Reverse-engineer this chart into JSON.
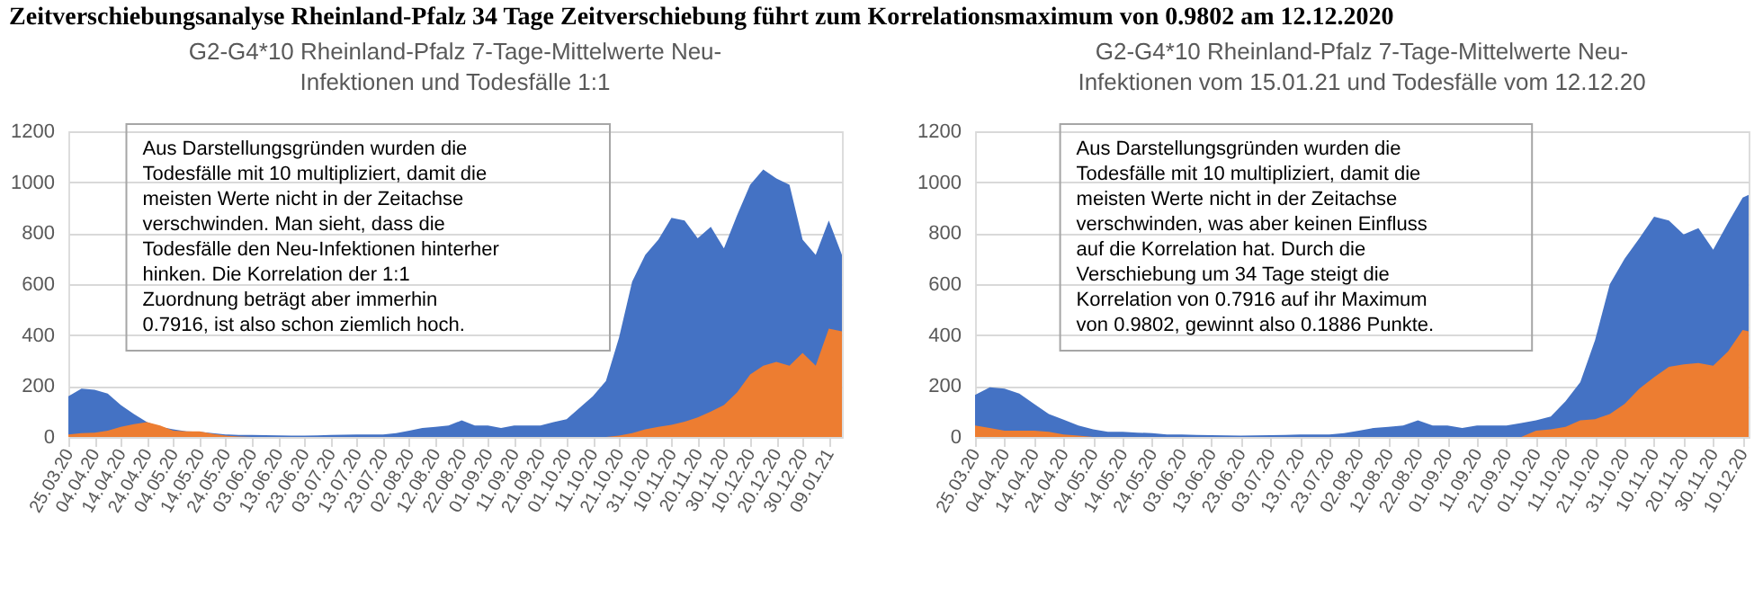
{
  "chart_data": [
    {
      "type": "area",
      "title": "G2-G4*10 Rheinland-Pfalz 7-Tage-Mittelwerte Neu-Infektionen und Todesfälle 1:1",
      "annotations": [
        "Zeitverschiebungsanalyse Rheinland-Pfalz  34 Tage Zeitverschiebung führt zum Korrelationsmaximum von 0.9802 am 12.12.2020",
        "Aus Darstellungsgründen wurden die\nTodesfälle mit 10 multipliziert, damit die\nmeisten Werte nicht in der Zeitachse\nverschwinden. Man sieht, dass die\nTodesfälle den Neu-Infektionen hinterher\nhinken. Die Korrelation der 1:1\nZuordnung beträgt aber immerhin\n0.7916, ist also schon ziemlich hoch."
      ],
      "x": [
        "2020-03-25",
        "2020-03-30",
        "2020-04-04",
        "2020-04-09",
        "2020-04-14",
        "2020-04-19",
        "2020-04-24",
        "2020-04-29",
        "2020-05-04",
        "2020-05-09",
        "2020-05-14",
        "2020-05-19",
        "2020-05-24",
        "2020-05-29",
        "2020-06-03",
        "2020-06-08",
        "2020-06-13",
        "2020-06-18",
        "2020-06-23",
        "2020-06-28",
        "2020-07-03",
        "2020-07-08",
        "2020-07-13",
        "2020-07-18",
        "2020-07-23",
        "2020-07-28",
        "2020-08-02",
        "2020-08-07",
        "2020-08-12",
        "2020-08-17",
        "2020-08-22",
        "2020-08-27",
        "2020-09-01",
        "2020-09-06",
        "2020-09-11",
        "2020-09-16",
        "2020-09-21",
        "2020-09-26",
        "2020-10-01",
        "2020-10-06",
        "2020-10-11",
        "2020-10-16",
        "2020-10-21",
        "2020-10-26",
        "2020-10-31",
        "2020-11-05",
        "2020-11-10",
        "2020-11-15",
        "2020-11-20",
        "2020-11-25",
        "2020-11-30",
        "2020-12-05",
        "2020-12-10",
        "2020-12-15",
        "2020-12-20",
        "2020-12-25",
        "2020-12-30",
        "2021-01-04",
        "2021-01-09",
        "2021-01-14"
      ],
      "series": [
        {
          "color": "#4472c4",
          "values": [
            160,
            190,
            185,
            170,
            125,
            90,
            58,
            40,
            30,
            22,
            20,
            15,
            10,
            8,
            8,
            7,
            6,
            5,
            5,
            6,
            8,
            9,
            10,
            10,
            10,
            15,
            25,
            35,
            40,
            45,
            65,
            45,
            45,
            35,
            45,
            45,
            45,
            58,
            70,
            115,
            160,
            220,
            390,
            610,
            715,
            775,
            860,
            850,
            780,
            825,
            740,
            870,
            990,
            1050,
            1015,
            990,
            775,
            715,
            850,
            715
          ]
        },
        {
          "color": "#ed7d31",
          "values": [
            10,
            15,
            17,
            25,
            40,
            50,
            58,
            45,
            25,
            22,
            22,
            12,
            5,
            2,
            0,
            0,
            0,
            0,
            0,
            0,
            0,
            0,
            0,
            0,
            0,
            0,
            0,
            0,
            0,
            0,
            0,
            0,
            0,
            0,
            0,
            0,
            0,
            0,
            0,
            0,
            0,
            0,
            5,
            15,
            30,
            40,
            48,
            60,
            77,
            100,
            125,
            175,
            245,
            280,
            295,
            280,
            330,
            280,
            425,
            415
          ]
        }
      ],
      "xlim": [
        "2020-03-25",
        "2021-01-14"
      ],
      "xticks": [
        {
          "value": "2020-03-25",
          "label": "25.03.20"
        },
        {
          "value": "2020-04-04",
          "label": "04.04.20"
        },
        {
          "value": "2020-04-14",
          "label": "14.04.20"
        },
        {
          "value": "2020-04-24",
          "label": "24.04.20"
        },
        {
          "value": "2020-05-04",
          "label": "04.05.20"
        },
        {
          "value": "2020-05-14",
          "label": "14.05.20"
        },
        {
          "value": "2020-05-24",
          "label": "24.05.20"
        },
        {
          "value": "2020-06-03",
          "label": "03.06.20"
        },
        {
          "value": "2020-06-13",
          "label": "13.06.20"
        },
        {
          "value": "2020-06-23",
          "label": "23.06.20"
        },
        {
          "value": "2020-07-03",
          "label": "03.07.20"
        },
        {
          "value": "2020-07-13",
          "label": "13.07.20"
        },
        {
          "value": "2020-07-23",
          "label": "23.07.20"
        },
        {
          "value": "2020-08-02",
          "label": "02.08.20"
        },
        {
          "value": "2020-08-12",
          "label": "12.08.20"
        },
        {
          "value": "2020-08-22",
          "label": "22.08.20"
        },
        {
          "value": "2020-09-01",
          "label": "01.09.20"
        },
        {
          "value": "2020-09-11",
          "label": "11.09.20"
        },
        {
          "value": "2020-09-21",
          "label": "21.09.20"
        },
        {
          "value": "2020-10-01",
          "label": "01.10.20"
        },
        {
          "value": "2020-10-11",
          "label": "11.10.20"
        },
        {
          "value": "2020-10-21",
          "label": "21.10.20"
        },
        {
          "value": "2020-10-31",
          "label": "31.10.20"
        },
        {
          "value": "2020-11-10",
          "label": "10.11.20"
        },
        {
          "value": "2020-11-20",
          "label": "20.11.20"
        },
        {
          "value": "2020-11-30",
          "label": "30.11.20"
        },
        {
          "value": "2020-12-10",
          "label": "10.12.20"
        },
        {
          "value": "2020-12-20",
          "label": "20.12.20"
        },
        {
          "value": "2020-12-30",
          "label": "30.12.20"
        },
        {
          "value": "2021-01-09",
          "label": "09.01.21"
        }
      ],
      "ylim": [
        0,
        1200
      ],
      "yticks": [
        0,
        200,
        400,
        600,
        800,
        1000,
        1200
      ],
      "grid": "y"
    },
    {
      "type": "area",
      "title": "G2-G4*10 Rheinland-Pfalz 7-Tage-Mittelwerte Neu-Infektionen vom 15.01.21 und Todesfälle vom 12.12.20",
      "annotations": [
        "Aus Darstellungsgründen wurden die\nTodesfälle mit 10 multipliziert, damit die\nmeisten Werte nicht in der Zeitachse\nverschwinden, was aber keinen Einfluss\nauf die Korrelation hat. Durch die\nVerschiebung um 34 Tage steigt die\nKorrelation von  0.7916 auf ihr Maximum\nvon 0.9802, gewinnt also 0.1886 Punkte."
      ],
      "x": [
        "2020-03-25",
        "2020-03-30",
        "2020-04-04",
        "2020-04-09",
        "2020-04-14",
        "2020-04-19",
        "2020-04-24",
        "2020-04-29",
        "2020-05-04",
        "2020-05-09",
        "2020-05-14",
        "2020-05-19",
        "2020-05-24",
        "2020-05-29",
        "2020-06-03",
        "2020-06-08",
        "2020-06-13",
        "2020-06-18",
        "2020-06-23",
        "2020-06-28",
        "2020-07-03",
        "2020-07-08",
        "2020-07-13",
        "2020-07-18",
        "2020-07-23",
        "2020-07-28",
        "2020-08-02",
        "2020-08-07",
        "2020-08-12",
        "2020-08-17",
        "2020-08-22",
        "2020-08-27",
        "2020-09-01",
        "2020-09-06",
        "2020-09-11",
        "2020-09-16",
        "2020-09-21",
        "2020-09-26",
        "2020-10-01",
        "2020-10-06",
        "2020-10-11",
        "2020-10-16",
        "2020-10-21",
        "2020-10-26",
        "2020-10-31",
        "2020-11-05",
        "2020-11-10",
        "2020-11-15",
        "2020-11-20",
        "2020-11-25",
        "2020-11-30",
        "2020-12-05",
        "2020-12-10",
        "2020-12-12"
      ],
      "series": [
        {
          "color": "#4472c4",
          "values": [
            165,
            195,
            190,
            170,
            130,
            90,
            68,
            45,
            30,
            20,
            20,
            17,
            15,
            10,
            10,
            8,
            7,
            6,
            5,
            6,
            7,
            8,
            10,
            10,
            10,
            15,
            25,
            35,
            40,
            45,
            65,
            45,
            45,
            35,
            45,
            45,
            45,
            55,
            65,
            80,
            140,
            215,
            380,
            600,
            700,
            780,
            865,
            850,
            795,
            820,
            735,
            840,
            940,
            950
          ]
        },
        {
          "color": "#ed7d31",
          "values": [
            45,
            35,
            25,
            25,
            25,
            20,
            10,
            5,
            0,
            0,
            0,
            0,
            0,
            0,
            0,
            0,
            0,
            0,
            0,
            0,
            0,
            0,
            0,
            0,
            0,
            0,
            0,
            0,
            0,
            0,
            0,
            0,
            0,
            0,
            0,
            0,
            0,
            0,
            25,
            30,
            40,
            65,
            70,
            90,
            130,
            190,
            235,
            275,
            285,
            290,
            280,
            335,
            420,
            415
          ]
        }
      ],
      "xlim": [
        "2020-03-25",
        "2020-12-12"
      ],
      "xticks": [
        {
          "value": "2020-03-25",
          "label": "25.03.20"
        },
        {
          "value": "2020-04-04",
          "label": "04.04.20"
        },
        {
          "value": "2020-04-14",
          "label": "14.04.20"
        },
        {
          "value": "2020-04-24",
          "label": "24.04.20"
        },
        {
          "value": "2020-05-04",
          "label": "04.05.20"
        },
        {
          "value": "2020-05-14",
          "label": "14.05.20"
        },
        {
          "value": "2020-05-24",
          "label": "24.05.20"
        },
        {
          "value": "2020-06-03",
          "label": "03.06.20"
        },
        {
          "value": "2020-06-13",
          "label": "13.06.20"
        },
        {
          "value": "2020-06-23",
          "label": "23.06.20"
        },
        {
          "value": "2020-07-03",
          "label": "03.07.20"
        },
        {
          "value": "2020-07-13",
          "label": "13.07.20"
        },
        {
          "value": "2020-07-23",
          "label": "23.07.20"
        },
        {
          "value": "2020-08-02",
          "label": "02.08.20"
        },
        {
          "value": "2020-08-12",
          "label": "12.08.20"
        },
        {
          "value": "2020-08-22",
          "label": "22.08.20"
        },
        {
          "value": "2020-09-01",
          "label": "01.09.20"
        },
        {
          "value": "2020-09-11",
          "label": "11.09.20"
        },
        {
          "value": "2020-09-21",
          "label": "21.09.20"
        },
        {
          "value": "2020-10-01",
          "label": "01.10.20"
        },
        {
          "value": "2020-10-11",
          "label": "11.10.20"
        },
        {
          "value": "2020-10-21",
          "label": "21.10.20"
        },
        {
          "value": "2020-10-31",
          "label": "31.10.20"
        },
        {
          "value": "2020-11-10",
          "label": "10.11.20"
        },
        {
          "value": "2020-11-20",
          "label": "20.11.20"
        },
        {
          "value": "2020-11-30",
          "label": "30.11.20"
        },
        {
          "value": "2020-12-10",
          "label": "10.12.20"
        }
      ],
      "ylim": [
        0,
        1200
      ],
      "yticks": [
        0,
        200,
        400,
        600,
        800,
        1000,
        1200
      ],
      "grid": "y"
    }
  ]
}
